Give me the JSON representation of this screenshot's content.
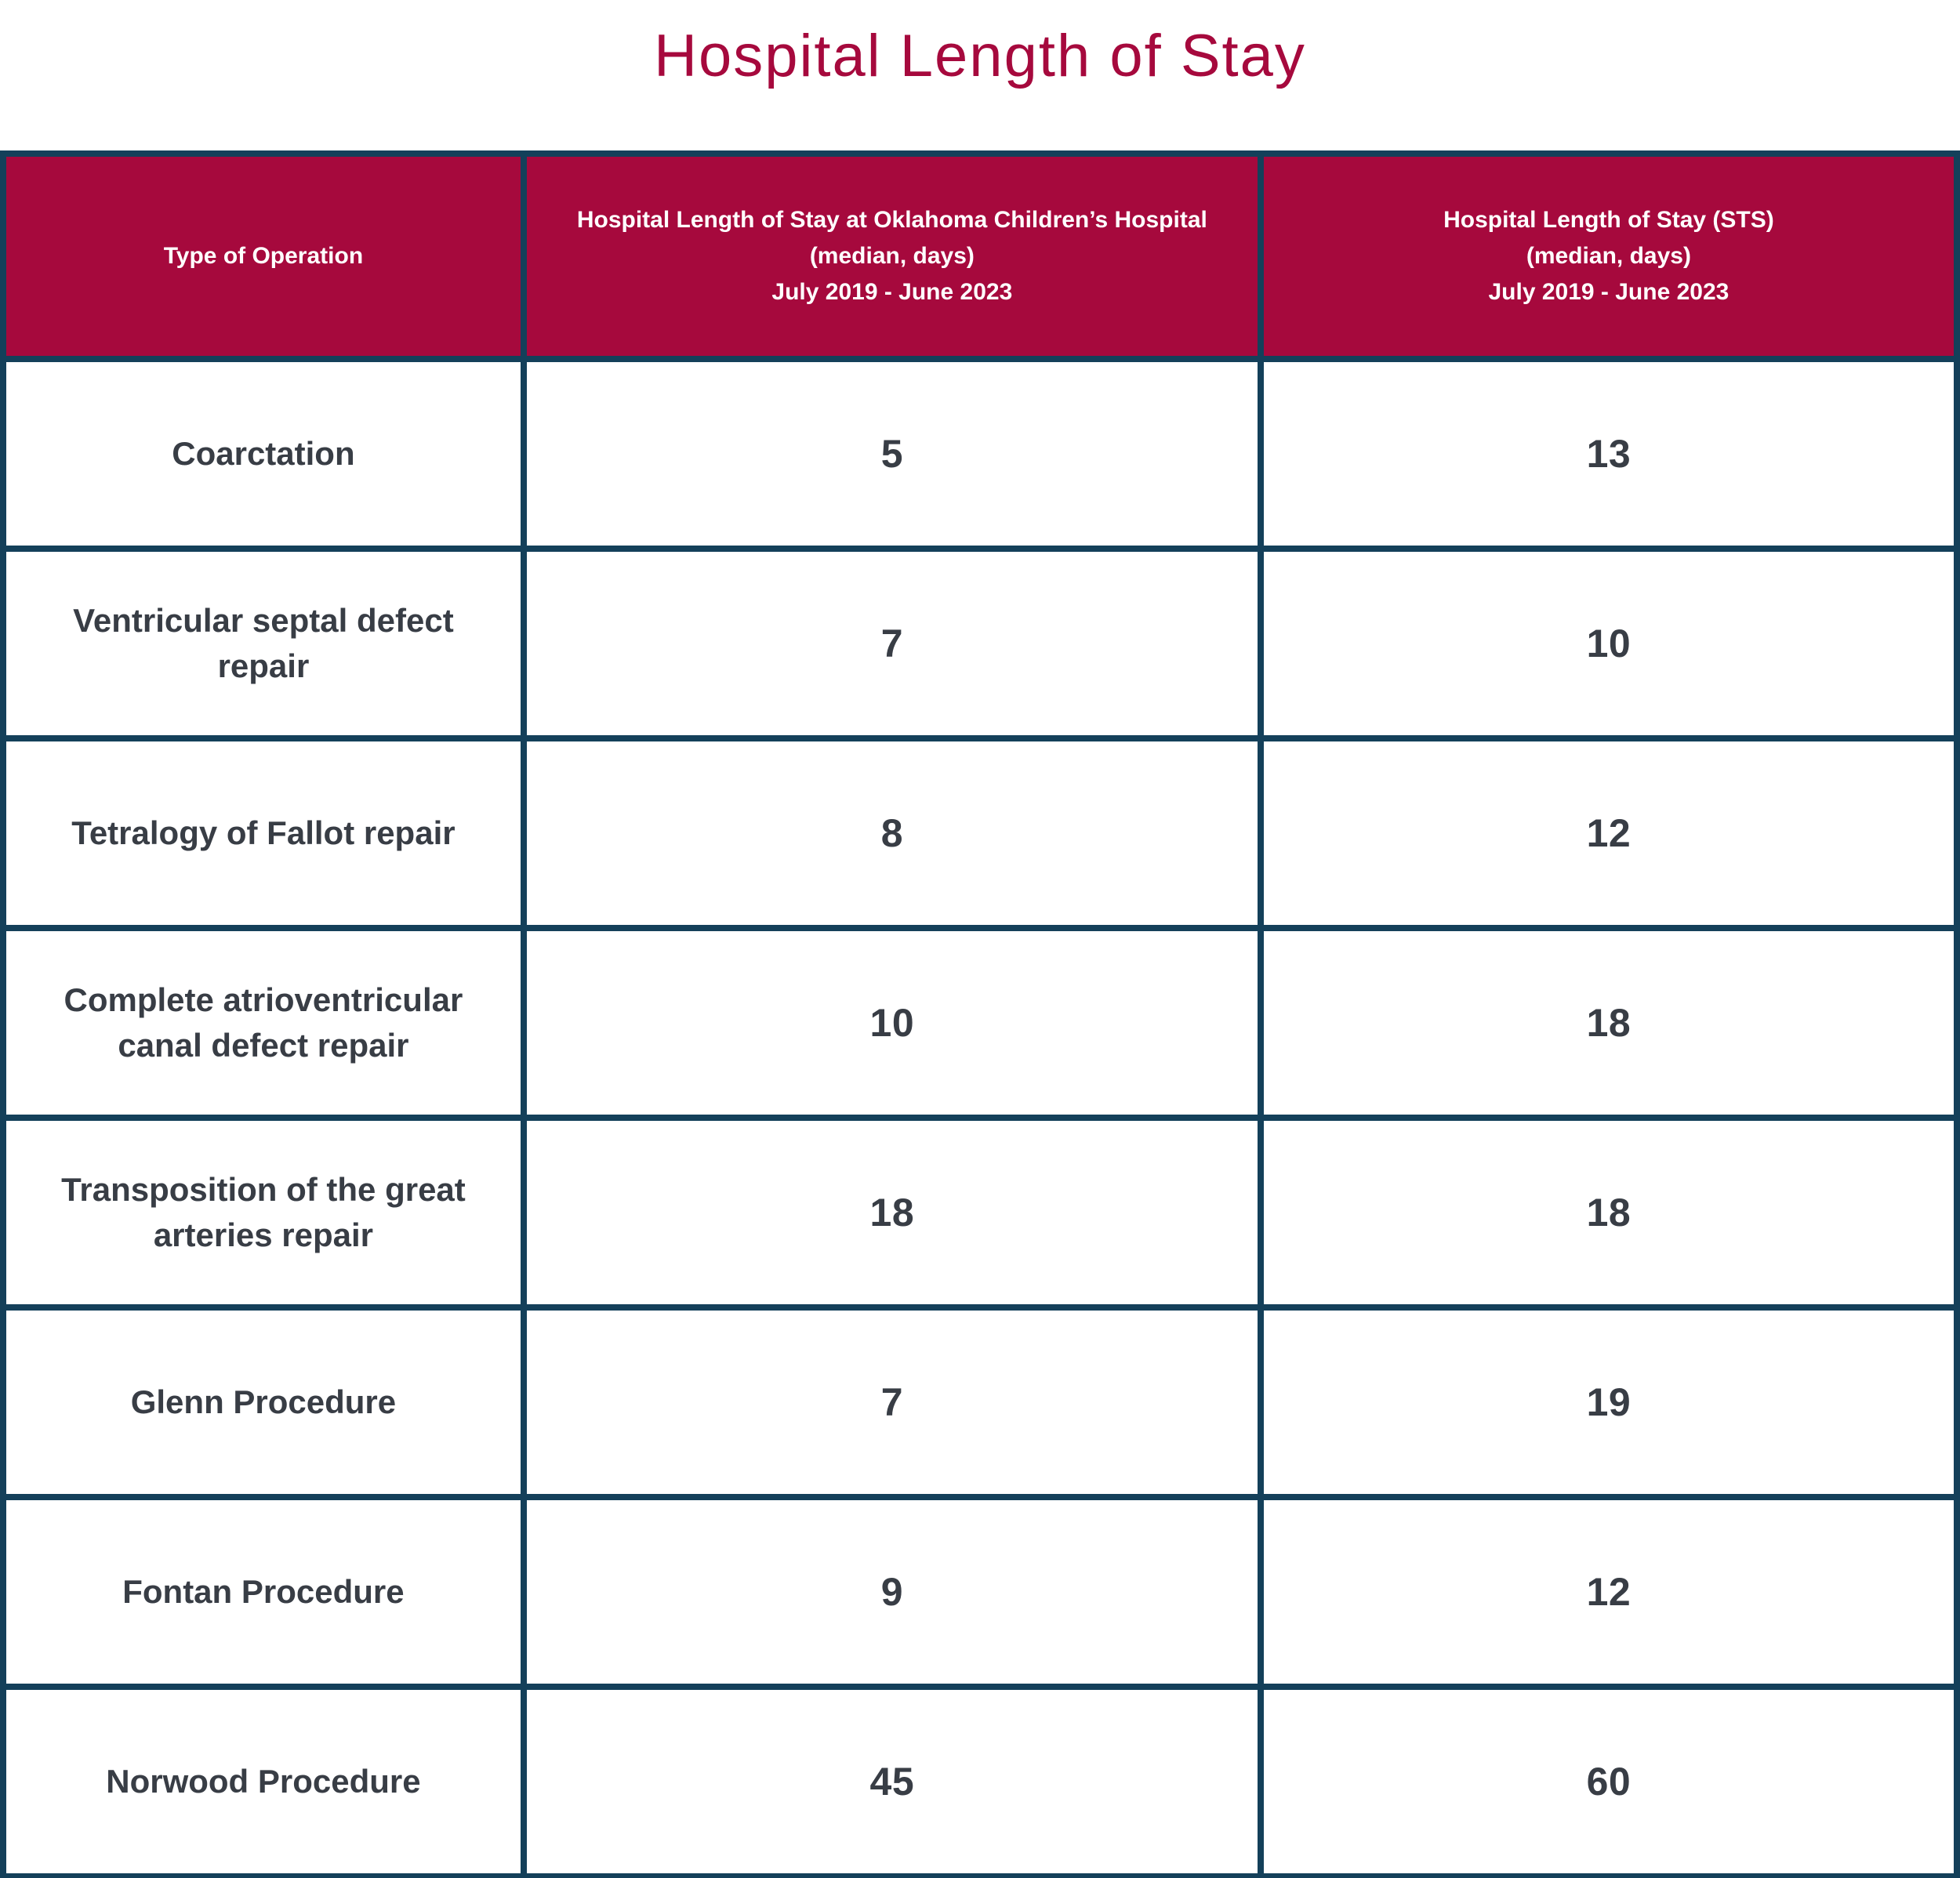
{
  "title": "Hospital Length of Stay",
  "colors": {
    "crimson": "#A6093D",
    "border_navy": "#14405A",
    "body_text": "#383D45",
    "header_text": "#FFFFFF",
    "page_bg": "#FFFFFF"
  },
  "table": {
    "columns": [
      {
        "id": "operation",
        "label": "Type of Operation"
      },
      {
        "id": "och",
        "lines": [
          "Hospital Length of Stay at Oklahoma Children’s Hospital",
          "(median, days)",
          "July 2019 - June 2023"
        ]
      },
      {
        "id": "sts",
        "lines": [
          "Hospital Length of Stay (STS)",
          "(median, days)",
          "July 2019 - June 2023"
        ]
      }
    ],
    "rows": [
      {
        "operation": "Coarctation",
        "och_median_days": "5",
        "sts_median_days": "13"
      },
      {
        "operation": "Ventricular septal defect repair",
        "och_median_days": "7",
        "sts_median_days": "10"
      },
      {
        "operation": "Tetralogy of Fallot repair",
        "och_median_days": "8",
        "sts_median_days": "12"
      },
      {
        "operation": "Complete atrioventricular canal defect repair",
        "och_median_days": "10",
        "sts_median_days": "18"
      },
      {
        "operation": "Transposition of the great arteries repair",
        "och_median_days": "18",
        "sts_median_days": "18"
      },
      {
        "operation": "Glenn Procedure",
        "och_median_days": "7",
        "sts_median_days": "19"
      },
      {
        "operation": "Fontan Procedure",
        "och_median_days": "9",
        "sts_median_days": "12"
      },
      {
        "operation": "Norwood Procedure",
        "och_median_days": "45",
        "sts_median_days": "60"
      }
    ]
  },
  "chart_data": {
    "type": "table",
    "title": "Hospital Length of Stay",
    "categories": [
      "Coarctation",
      "Ventricular septal defect repair",
      "Tetralogy of Fallot repair",
      "Complete atrioventricular canal defect repair",
      "Transposition of the great arteries repair",
      "Glenn Procedure",
      "Fontan Procedure",
      "Norwood Procedure"
    ],
    "series": [
      {
        "name": "Hospital Length of Stay at Oklahoma Children’s Hospital (median, days) July 2019 - June 2023",
        "values": [
          5,
          7,
          8,
          10,
          18,
          7,
          9,
          45
        ]
      },
      {
        "name": "Hospital Length of Stay (STS) (median, days) July 2019 - June 2023",
        "values": [
          13,
          10,
          12,
          18,
          18,
          19,
          12,
          60
        ]
      }
    ]
  }
}
